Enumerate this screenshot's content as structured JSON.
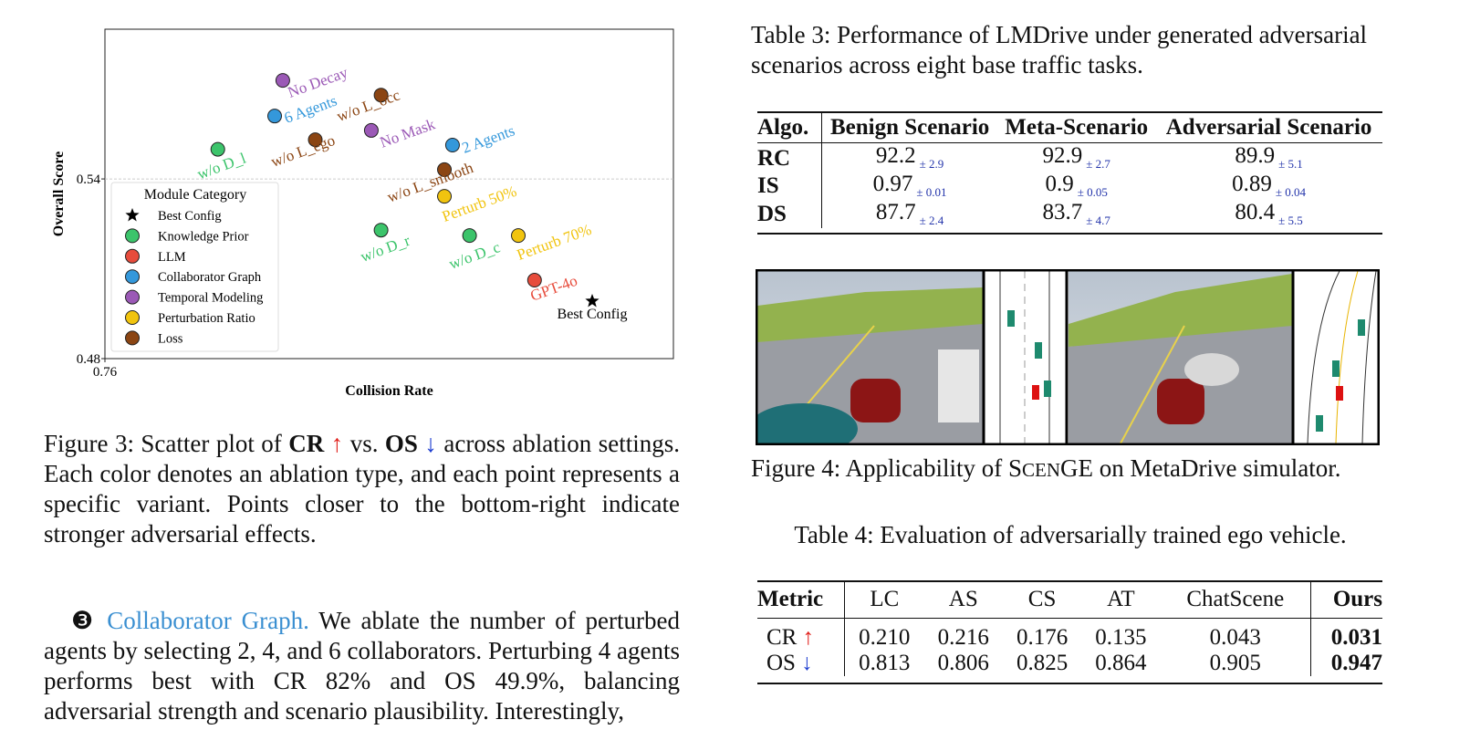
{
  "chart_data": {
    "type": "scatter",
    "xlabel": "Collision Rate",
    "ylabel": "Overall Score",
    "xlim": [
      0.76,
      0.83
    ],
    "ylim": [
      0.48,
      0.59
    ],
    "xticks": [
      0.76
    ],
    "yticks": [
      0.48,
      0.54
    ],
    "grid": true,
    "legend_title": "Module Category",
    "legend": "lower left",
    "series": [
      {
        "name": "Best Config",
        "color": "#000000",
        "marker": "star",
        "x": [
          0.82
        ],
        "y": [
          0.4992
        ],
        "labels": [
          "Best Config"
        ],
        "label_color": "#000000"
      },
      {
        "name": "Knowledge Prior",
        "color": "#3cc46b",
        "marker": "circle",
        "x": [
          0.7739,
          0.794,
          0.8049
        ],
        "y": [
          0.5499,
          0.5229,
          0.5211
        ],
        "labels": [
          "w/o D_l",
          "w/o D_r",
          "w/o D_c"
        ]
      },
      {
        "name": "LLM",
        "color": "#e74c3c",
        "marker": "circle",
        "x": [
          0.8129
        ],
        "y": [
          0.5062
        ],
        "labels": [
          "GPT-4o"
        ]
      },
      {
        "name": "Collaborator Graph",
        "color": "#3498db",
        "marker": "circle",
        "x": [
          0.7809,
          0.8028
        ],
        "y": [
          0.561,
          0.5513
        ],
        "labels": [
          "6 Agents",
          "2 Agents"
        ]
      },
      {
        "name": "Temporal Modeling",
        "color": "#9b59b6",
        "marker": "circle",
        "x": [
          0.7819,
          0.7928
        ],
        "y": [
          0.5729,
          0.5562
        ],
        "labels": [
          "No Decay",
          "No Mask"
        ]
      },
      {
        "name": "Perturbation Ratio",
        "color": "#f1c40f",
        "marker": "circle",
        "x": [
          0.8018,
          0.8109
        ],
        "y": [
          0.5342,
          0.5211
        ],
        "labels": [
          "Perturb 50%",
          "Perturb 70%"
        ]
      },
      {
        "name": "Loss",
        "color": "#8b4513",
        "marker": "circle",
        "x": [
          0.794,
          0.7859,
          0.8018
        ],
        "y": [
          0.568,
          0.5531,
          0.5431
        ],
        "labels": [
          "w/o L_occ",
          "w/o L_ego",
          "w/o L_smooth"
        ]
      }
    ]
  },
  "figure3_caption": [
    "Figure 3: Scatter plot of ",
    "CR",
    "↑",
    " vs. ",
    "OS",
    "↓",
    " across ablation settings. Each color denotes an ablation type, and each point represents a specific variant. Points closer to the bottom-right indicate stronger adversarial effects."
  ],
  "paragraph": [
    "❸ ",
    "Collaborator Graph.",
    " We ablate the number of perturbed agents by selecting 2, 4, and 6 collaborators. Perturbing 4 agents performs best with CR 82% and OS 49.9%, balancing adversarial strength and scenario plausibility. Interestingly,"
  ],
  "table3": {
    "caption": "Table 3: Performance of LMDrive under generated adversarial scenarios across eight base traffic tasks.",
    "header": [
      "Algo.",
      "Benign Scenario",
      "Meta-Scenario",
      "Adversarial Scenario"
    ],
    "rows": [
      [
        "RC",
        [
          "92.2",
          "± 2.9"
        ],
        [
          "92.9",
          "± 2.7"
        ],
        [
          "89.9",
          "± 5.1"
        ]
      ],
      [
        "IS",
        [
          "0.97",
          "± 0.01"
        ],
        [
          "0.9",
          "± 0.05"
        ],
        [
          "0.89",
          "± 0.04"
        ]
      ],
      [
        "DS",
        [
          "87.7",
          "± 2.4"
        ],
        [
          "83.7",
          "± 4.7"
        ],
        [
          "80.4",
          "± 5.5"
        ]
      ]
    ]
  },
  "figure4_caption": [
    "Figure 4: Applicability of S",
    "CEN",
    "GE on MetaDrive simulator."
  ],
  "table4": {
    "caption": "Table 4: Evaluation of adversarially trained ego vehicle.",
    "header": [
      "Metric",
      "LC",
      "AS",
      "CS",
      "AT",
      "ChatScene",
      "Ours"
    ],
    "rows": [
      [
        [
          "CR ",
          "↑"
        ],
        "0.210",
        "0.216",
        "0.176",
        "0.135",
        "0.043",
        "0.031"
      ],
      [
        [
          "OS ",
          "↓"
        ],
        "0.813",
        "0.806",
        "0.825",
        "0.864",
        "0.905",
        "0.947"
      ]
    ]
  }
}
